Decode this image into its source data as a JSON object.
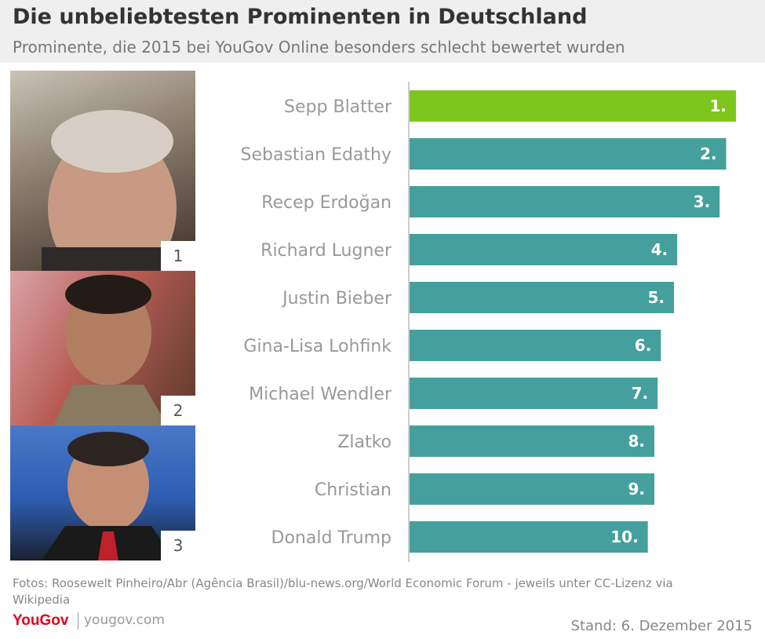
{
  "header": {
    "title": "Die unbeliebtesten Prominenten in Deutschland",
    "subtitle": "Prominente, die 2015 bei YouGov Online besonders schlecht bewertet wurden"
  },
  "photos": [
    {
      "label": "1"
    },
    {
      "label": "2"
    },
    {
      "label": "3"
    }
  ],
  "chart_data": {
    "type": "bar",
    "orientation": "horizontal",
    "categories": [
      "Sepp Blatter",
      "Sebastian Edathy",
      "Recep Erdoğan",
      "Richard Lugner",
      "Justin Bieber",
      "Gina-Lisa Lohfink",
      "Michael Wendler",
      "Zlatko",
      "Christian",
      "Donald Trump"
    ],
    "values": [
      100,
      97,
      95,
      82,
      81,
      77,
      76,
      75,
      75,
      73
    ],
    "labels": [
      "1.",
      "2.",
      "3.",
      "4.",
      "5.",
      "6.",
      "7.",
      "8.",
      "9.",
      "10."
    ],
    "xlim": [
      0,
      100
    ],
    "grid": false,
    "highlight_color": "#7ec61e",
    "bar_color": "#45a09d",
    "label_color": "#999999",
    "value_label_color": "#ffffff"
  },
  "footer": {
    "credit": "Fotos: Roosewelt Pinheiro/Abr (Agência Brasil)/blu-news.org/World Economic Forum - jeweils unter CC-Lizenz via Wikipedia",
    "logo": "YouGov",
    "website": "yougov.com",
    "stand": "Stand: 6. Dezember 2015"
  }
}
